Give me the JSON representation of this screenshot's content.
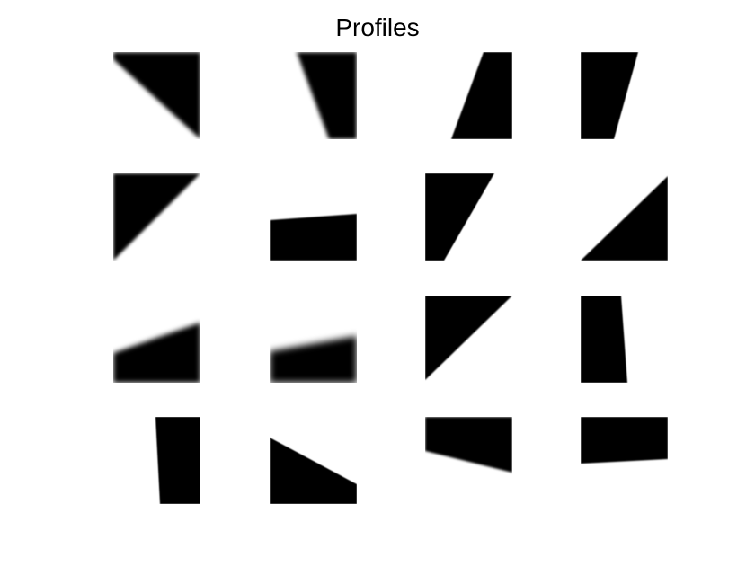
{
  "figure": {
    "title": "Profiles"
  },
  "tiles": {
    "grid": {
      "rows": 4,
      "cols": 4
    },
    "colors": {
      "fill": "#000000",
      "background": "#ffffff"
    }
  }
}
